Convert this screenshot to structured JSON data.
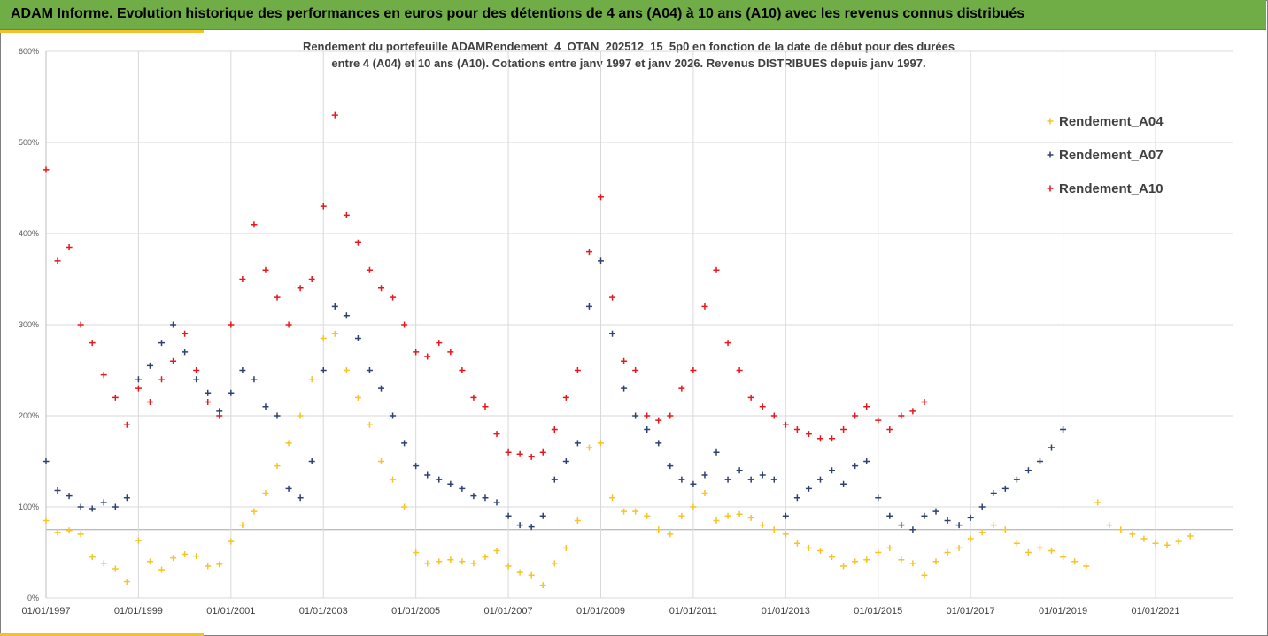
{
  "header": {
    "title": "ADAM Informe. Evolution historique des performances en euros pour des détentions de 4 ans (A04) à 10 ans (A10) avec les revenus connus distribués"
  },
  "colors": {
    "header_bg": "#70ad47",
    "accent": "#f2c12e",
    "A04": "#f7c325",
    "A07": "#2e4272",
    "A10": "#e8171c",
    "grid": "#d9d9d9"
  },
  "chart_data": {
    "type": "scatter",
    "title_line1": "Rendement du portefeuille ADAMRendement_4_OTAN_202512_15_5p0  en fonction de la date de début pour des durées",
    "title_line2": "entre 4 (A04) et 10 ans (A10). Cotations entre janv 1997 et janv 2026. Revenus DISTRIBUES depuis janv 1997.",
    "xlabel": "",
    "ylabel": "",
    "ylim": [
      0,
      600
    ],
    "xlim": [
      "1997-01-01",
      "2022-09-01"
    ],
    "y_ticks": [
      "0%",
      "100%",
      "200%",
      "300%",
      "400%",
      "500%",
      "600%"
    ],
    "x_ticks": [
      "01/01/1997",
      "01/01/1999",
      "01/01/2001",
      "01/01/2003",
      "01/01/2005",
      "01/01/2007",
      "01/01/2009",
      "01/01/2011",
      "01/01/2013",
      "01/01/2015",
      "01/01/2017",
      "01/01/2019",
      "01/01/2021"
    ],
    "grid": true,
    "legend_position": "right",
    "marker": "+",
    "series": [
      {
        "name": "Rendement_A04",
        "key": "A04",
        "points": [
          [
            "1997-01",
            85
          ],
          [
            "1997-04",
            72
          ],
          [
            "1997-07",
            74
          ],
          [
            "1997-10",
            70
          ],
          [
            "1998-01",
            45
          ],
          [
            "1998-04",
            38
          ],
          [
            "1998-07",
            32
          ],
          [
            "1998-10",
            18
          ],
          [
            "1999-01",
            63
          ],
          [
            "1999-04",
            40
          ],
          [
            "1999-07",
            31
          ],
          [
            "1999-10",
            44
          ],
          [
            "2000-01",
            48
          ],
          [
            "2000-04",
            46
          ],
          [
            "2000-07",
            35
          ],
          [
            "2000-10",
            37
          ],
          [
            "2001-01",
            62
          ],
          [
            "2001-04",
            80
          ],
          [
            "2001-07",
            95
          ],
          [
            "2001-10",
            115
          ],
          [
            "2002-01",
            145
          ],
          [
            "2002-04",
            170
          ],
          [
            "2002-07",
            200
          ],
          [
            "2002-10",
            240
          ],
          [
            "2003-01",
            285
          ],
          [
            "2003-04",
            290
          ],
          [
            "2003-07",
            250
          ],
          [
            "2003-10",
            220
          ],
          [
            "2004-01",
            190
          ],
          [
            "2004-04",
            150
          ],
          [
            "2004-07",
            130
          ],
          [
            "2004-10",
            100
          ],
          [
            "2005-01",
            50
          ],
          [
            "2005-04",
            38
          ],
          [
            "2005-07",
            40
          ],
          [
            "2005-10",
            42
          ],
          [
            "2006-01",
            40
          ],
          [
            "2006-04",
            38
          ],
          [
            "2006-07",
            45
          ],
          [
            "2006-10",
            52
          ],
          [
            "2007-01",
            35
          ],
          [
            "2007-04",
            28
          ],
          [
            "2007-07",
            25
          ],
          [
            "2007-10",
            14
          ],
          [
            "2008-01",
            38
          ],
          [
            "2008-04",
            55
          ],
          [
            "2008-07",
            85
          ],
          [
            "2008-10",
            165
          ],
          [
            "2009-01",
            170
          ],
          [
            "2009-04",
            110
          ],
          [
            "2009-07",
            95
          ],
          [
            "2009-10",
            95
          ],
          [
            "2010-01",
            90
          ],
          [
            "2010-04",
            75
          ],
          [
            "2010-07",
            70
          ],
          [
            "2010-10",
            90
          ],
          [
            "2011-01",
            100
          ],
          [
            "2011-04",
            115
          ],
          [
            "2011-07",
            85
          ],
          [
            "2011-10",
            90
          ],
          [
            "2012-01",
            92
          ],
          [
            "2012-04",
            88
          ],
          [
            "2012-07",
            80
          ],
          [
            "2012-10",
            75
          ],
          [
            "2013-01",
            70
          ],
          [
            "2013-04",
            60
          ],
          [
            "2013-07",
            55
          ],
          [
            "2013-10",
            52
          ],
          [
            "2014-01",
            45
          ],
          [
            "2014-04",
            35
          ],
          [
            "2014-07",
            40
          ],
          [
            "2014-10",
            42
          ],
          [
            "2015-01",
            50
          ],
          [
            "2015-04",
            55
          ],
          [
            "2015-07",
            42
          ],
          [
            "2015-10",
            38
          ],
          [
            "2016-01",
            25
          ],
          [
            "2016-04",
            40
          ],
          [
            "2016-07",
            50
          ],
          [
            "2016-10",
            55
          ],
          [
            "2017-01",
            65
          ],
          [
            "2017-04",
            72
          ],
          [
            "2017-07",
            80
          ],
          [
            "2017-10",
            75
          ],
          [
            "2018-01",
            60
          ],
          [
            "2018-04",
            50
          ],
          [
            "2018-07",
            55
          ],
          [
            "2018-10",
            52
          ],
          [
            "2019-01",
            45
          ],
          [
            "2019-04",
            40
          ],
          [
            "2019-07",
            35
          ],
          [
            "2019-10",
            105
          ],
          [
            "2020-01",
            80
          ],
          [
            "2020-04",
            75
          ],
          [
            "2020-07",
            70
          ],
          [
            "2020-10",
            65
          ],
          [
            "2021-01",
            60
          ],
          [
            "2021-04",
            58
          ],
          [
            "2021-07",
            62
          ],
          [
            "2021-10",
            68
          ]
        ]
      },
      {
        "name": "Rendement_A07",
        "key": "A07",
        "points": [
          [
            "1997-01",
            150
          ],
          [
            "1997-04",
            118
          ],
          [
            "1997-07",
            112
          ],
          [
            "1997-10",
            100
          ],
          [
            "1998-01",
            98
          ],
          [
            "1998-04",
            105
          ],
          [
            "1998-07",
            100
          ],
          [
            "1998-10",
            110
          ],
          [
            "1999-01",
            240
          ],
          [
            "1999-04",
            255
          ],
          [
            "1999-07",
            280
          ],
          [
            "1999-10",
            300
          ],
          [
            "2000-01",
            270
          ],
          [
            "2000-04",
            240
          ],
          [
            "2000-07",
            225
          ],
          [
            "2000-10",
            205
          ],
          [
            "2001-01",
            225
          ],
          [
            "2001-04",
            250
          ],
          [
            "2001-07",
            240
          ],
          [
            "2001-10",
            210
          ],
          [
            "2002-01",
            200
          ],
          [
            "2002-04",
            120
          ],
          [
            "2002-07",
            110
          ],
          [
            "2002-10",
            150
          ],
          [
            "2003-01",
            250
          ],
          [
            "2003-04",
            320
          ],
          [
            "2003-07",
            310
          ],
          [
            "2003-10",
            285
          ],
          [
            "2004-01",
            250
          ],
          [
            "2004-04",
            230
          ],
          [
            "2004-07",
            200
          ],
          [
            "2004-10",
            170
          ],
          [
            "2005-01",
            145
          ],
          [
            "2005-04",
            135
          ],
          [
            "2005-07",
            130
          ],
          [
            "2005-10",
            125
          ],
          [
            "2006-01",
            120
          ],
          [
            "2006-04",
            112
          ],
          [
            "2006-07",
            110
          ],
          [
            "2006-10",
            105
          ],
          [
            "2007-01",
            90
          ],
          [
            "2007-04",
            80
          ],
          [
            "2007-07",
            78
          ],
          [
            "2007-10",
            90
          ],
          [
            "2008-01",
            130
          ],
          [
            "2008-04",
            150
          ],
          [
            "2008-07",
            170
          ],
          [
            "2008-10",
            320
          ],
          [
            "2009-01",
            370
          ],
          [
            "2009-04",
            290
          ],
          [
            "2009-07",
            230
          ],
          [
            "2009-10",
            200
          ],
          [
            "2010-01",
            185
          ],
          [
            "2010-04",
            170
          ],
          [
            "2010-07",
            145
          ],
          [
            "2010-10",
            130
          ],
          [
            "2011-01",
            125
          ],
          [
            "2011-04",
            135
          ],
          [
            "2011-07",
            160
          ],
          [
            "2011-10",
            130
          ],
          [
            "2012-01",
            140
          ],
          [
            "2012-04",
            130
          ],
          [
            "2012-07",
            135
          ],
          [
            "2012-10",
            130
          ],
          [
            "2013-01",
            90
          ],
          [
            "2013-04",
            110
          ],
          [
            "2013-07",
            120
          ],
          [
            "2013-10",
            130
          ],
          [
            "2014-01",
            140
          ],
          [
            "2014-04",
            125
          ],
          [
            "2014-07",
            145
          ],
          [
            "2014-10",
            150
          ],
          [
            "2015-01",
            110
          ],
          [
            "2015-04",
            90
          ],
          [
            "2015-07",
            80
          ],
          [
            "2015-10",
            75
          ],
          [
            "2016-01",
            90
          ],
          [
            "2016-04",
            95
          ],
          [
            "2016-07",
            85
          ],
          [
            "2016-10",
            80
          ],
          [
            "2017-01",
            88
          ],
          [
            "2017-04",
            100
          ],
          [
            "2017-07",
            115
          ],
          [
            "2017-10",
            120
          ],
          [
            "2018-01",
            130
          ],
          [
            "2018-04",
            140
          ],
          [
            "2018-07",
            150
          ],
          [
            "2018-10",
            165
          ],
          [
            "2019-01",
            185
          ]
        ]
      },
      {
        "name": "Rendement_A10",
        "key": "A10",
        "points": [
          [
            "1997-01",
            470
          ],
          [
            "1997-04",
            370
          ],
          [
            "1997-07",
            385
          ],
          [
            "1997-10",
            300
          ],
          [
            "1998-01",
            280
          ],
          [
            "1998-04",
            245
          ],
          [
            "1998-07",
            220
          ],
          [
            "1998-10",
            190
          ],
          [
            "1999-01",
            230
          ],
          [
            "1999-04",
            215
          ],
          [
            "1999-07",
            240
          ],
          [
            "1999-10",
            260
          ],
          [
            "2000-01",
            290
          ],
          [
            "2000-04",
            250
          ],
          [
            "2000-07",
            215
          ],
          [
            "2000-10",
            200
          ],
          [
            "2001-01",
            300
          ],
          [
            "2001-04",
            350
          ],
          [
            "2001-07",
            410
          ],
          [
            "2001-10",
            360
          ],
          [
            "2002-01",
            330
          ],
          [
            "2002-04",
            300
          ],
          [
            "2002-07",
            340
          ],
          [
            "2002-10",
            350
          ],
          [
            "2003-01",
            430
          ],
          [
            "2003-04",
            530
          ],
          [
            "2003-07",
            420
          ],
          [
            "2003-10",
            390
          ],
          [
            "2004-01",
            360
          ],
          [
            "2004-04",
            340
          ],
          [
            "2004-07",
            330
          ],
          [
            "2004-10",
            300
          ],
          [
            "2005-01",
            270
          ],
          [
            "2005-04",
            265
          ],
          [
            "2005-07",
            280
          ],
          [
            "2005-10",
            270
          ],
          [
            "2006-01",
            250
          ],
          [
            "2006-04",
            220
          ],
          [
            "2006-07",
            210
          ],
          [
            "2006-10",
            180
          ],
          [
            "2007-01",
            160
          ],
          [
            "2007-04",
            158
          ],
          [
            "2007-07",
            155
          ],
          [
            "2007-10",
            160
          ],
          [
            "2008-01",
            185
          ],
          [
            "2008-04",
            220
          ],
          [
            "2008-07",
            250
          ],
          [
            "2008-10",
            380
          ],
          [
            "2009-01",
            440
          ],
          [
            "2009-04",
            330
          ],
          [
            "2009-07",
            260
          ],
          [
            "2009-10",
            250
          ],
          [
            "2010-01",
            200
          ],
          [
            "2010-04",
            195
          ],
          [
            "2010-07",
            200
          ],
          [
            "2010-10",
            230
          ],
          [
            "2011-01",
            250
          ],
          [
            "2011-04",
            320
          ],
          [
            "2011-07",
            360
          ],
          [
            "2011-10",
            280
          ],
          [
            "2012-01",
            250
          ],
          [
            "2012-04",
            220
          ],
          [
            "2012-07",
            210
          ],
          [
            "2012-10",
            200
          ],
          [
            "2013-01",
            190
          ],
          [
            "2013-04",
            185
          ],
          [
            "2013-07",
            180
          ],
          [
            "2013-10",
            175
          ],
          [
            "2014-01",
            175
          ],
          [
            "2014-04",
            185
          ],
          [
            "2014-07",
            200
          ],
          [
            "2014-10",
            210
          ],
          [
            "2015-01",
            195
          ],
          [
            "2015-04",
            185
          ],
          [
            "2015-07",
            200
          ],
          [
            "2015-10",
            205
          ],
          [
            "2016-01",
            215
          ]
        ]
      }
    ]
  }
}
